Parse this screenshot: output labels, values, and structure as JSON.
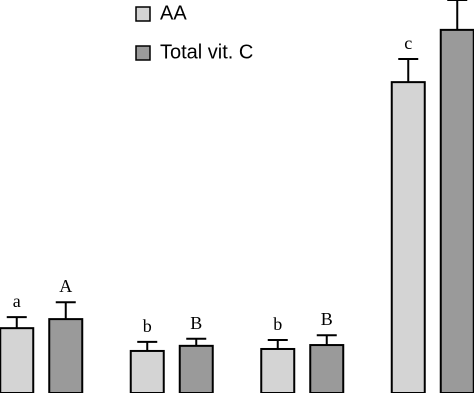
{
  "chart_data": {
    "type": "bar",
    "categories": [
      null,
      null,
      null,
      null
    ],
    "series": [
      {
        "name": "AA",
        "color": "#d4d4d4",
        "values": [
          16.5,
          10.7,
          11.2,
          79.1
        ],
        "errors": [
          2.8,
          2.3,
          2.3,
          5.9
        ],
        "letters": [
          "a",
          "b",
          "b",
          "c"
        ]
      },
      {
        "name": "Total vit. C",
        "color": "#9a9a9a",
        "values": [
          18.8,
          12.0,
          12.2,
          92.4
        ],
        "errors": [
          4.3,
          1.8,
          2.5,
          7.6
        ],
        "letters": [
          "A",
          "B",
          "B",
          null
        ]
      }
    ],
    "ylim": [
      0,
      100
    ]
  }
}
